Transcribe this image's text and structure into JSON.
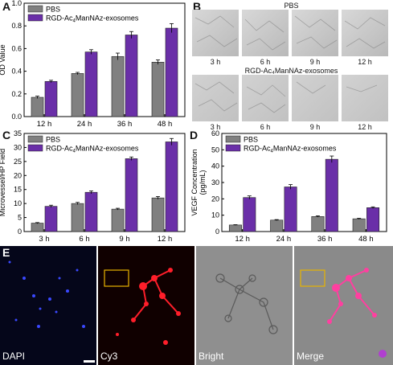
{
  "panels": {
    "A": "A",
    "B": "B",
    "C": "C",
    "D": "D",
    "E": "E"
  },
  "legend": {
    "pbs": "PBS",
    "rgd": "RGD-Ac₄ManNAz-exosomes",
    "rgd_prefix": "RGD-Ac",
    "rgd_sub": "4",
    "rgd_suffix": "ManNAz-exosomes"
  },
  "colors": {
    "pbs": "#808080",
    "rgd": "#6a2fa8"
  },
  "chart_data": [
    {
      "panel": "A",
      "type": "bar",
      "categories": [
        "12 h",
        "24 h",
        "36 h",
        "48 h"
      ],
      "series": [
        {
          "name": "PBS",
          "values": [
            0.17,
            0.38,
            0.53,
            0.48
          ],
          "errors": [
            0.01,
            0.01,
            0.03,
            0.02
          ]
        },
        {
          "name": "RGD-Ac4ManNAz-exosomes",
          "values": [
            0.31,
            0.57,
            0.72,
            0.78
          ],
          "errors": [
            0.01,
            0.02,
            0.03,
            0.04
          ]
        }
      ],
      "ylabel": "OD Value",
      "ylim": [
        0,
        1.0
      ],
      "yticks": [
        "0.0",
        "0.2",
        "0.4",
        "0.6",
        "0.8",
        "1.0"
      ],
      "legend_position": "top-left"
    },
    {
      "panel": "C",
      "type": "bar",
      "categories": [
        "3 h",
        "6 h",
        "9 h",
        "12 h"
      ],
      "series": [
        {
          "name": "PBS",
          "values": [
            3.0,
            10.0,
            8.0,
            12.0
          ],
          "errors": [
            0.2,
            0.4,
            0.3,
            0.5
          ]
        },
        {
          "name": "RGD-Ac4ManNAz-exosomes",
          "values": [
            9.0,
            14.0,
            26.0,
            32.0
          ],
          "errors": [
            0.4,
            0.5,
            0.6,
            1.2
          ]
        }
      ],
      "ylabel": "Microvessel/HP Field",
      "ylim": [
        0,
        35
      ],
      "yticks": [
        "0",
        "5",
        "10",
        "15",
        "20",
        "25",
        "30",
        "35"
      ],
      "legend_position": "top-left"
    },
    {
      "panel": "D",
      "type": "bar",
      "categories": [
        "12 h",
        "24 h",
        "36 h",
        "48 h"
      ],
      "series": [
        {
          "name": "PBS",
          "values": [
            4.0,
            7.0,
            9.2,
            7.8
          ],
          "errors": [
            0.2,
            0.3,
            0.4,
            0.3
          ]
        },
        {
          "name": "RGD-Ac4ManNAz-exosomes",
          "values": [
            20.8,
            27.3,
            44.2,
            14.6
          ],
          "errors": [
            1.0,
            1.4,
            2.0,
            0.5
          ]
        }
      ],
      "ylabel": "VEGF Concentration (pg/mL)",
      "ylabel_line1": "VEGF Concentration",
      "ylabel_line2": "(pg/mL)",
      "ylim": [
        0,
        60
      ],
      "yticks": [
        "0",
        "10",
        "20",
        "30",
        "40",
        "50",
        "60"
      ],
      "legend_position": "top-left"
    }
  ],
  "panel_b": {
    "pbs_title": "PBS",
    "rgd_title": "RGD-Ac₄ManNAz-exosomes",
    "times": [
      "3 h",
      "6 h",
      "9 h",
      "12 h"
    ]
  },
  "panel_e": {
    "labels": [
      "DAPI",
      "Cy3",
      "Bright",
      "Merge"
    ]
  }
}
